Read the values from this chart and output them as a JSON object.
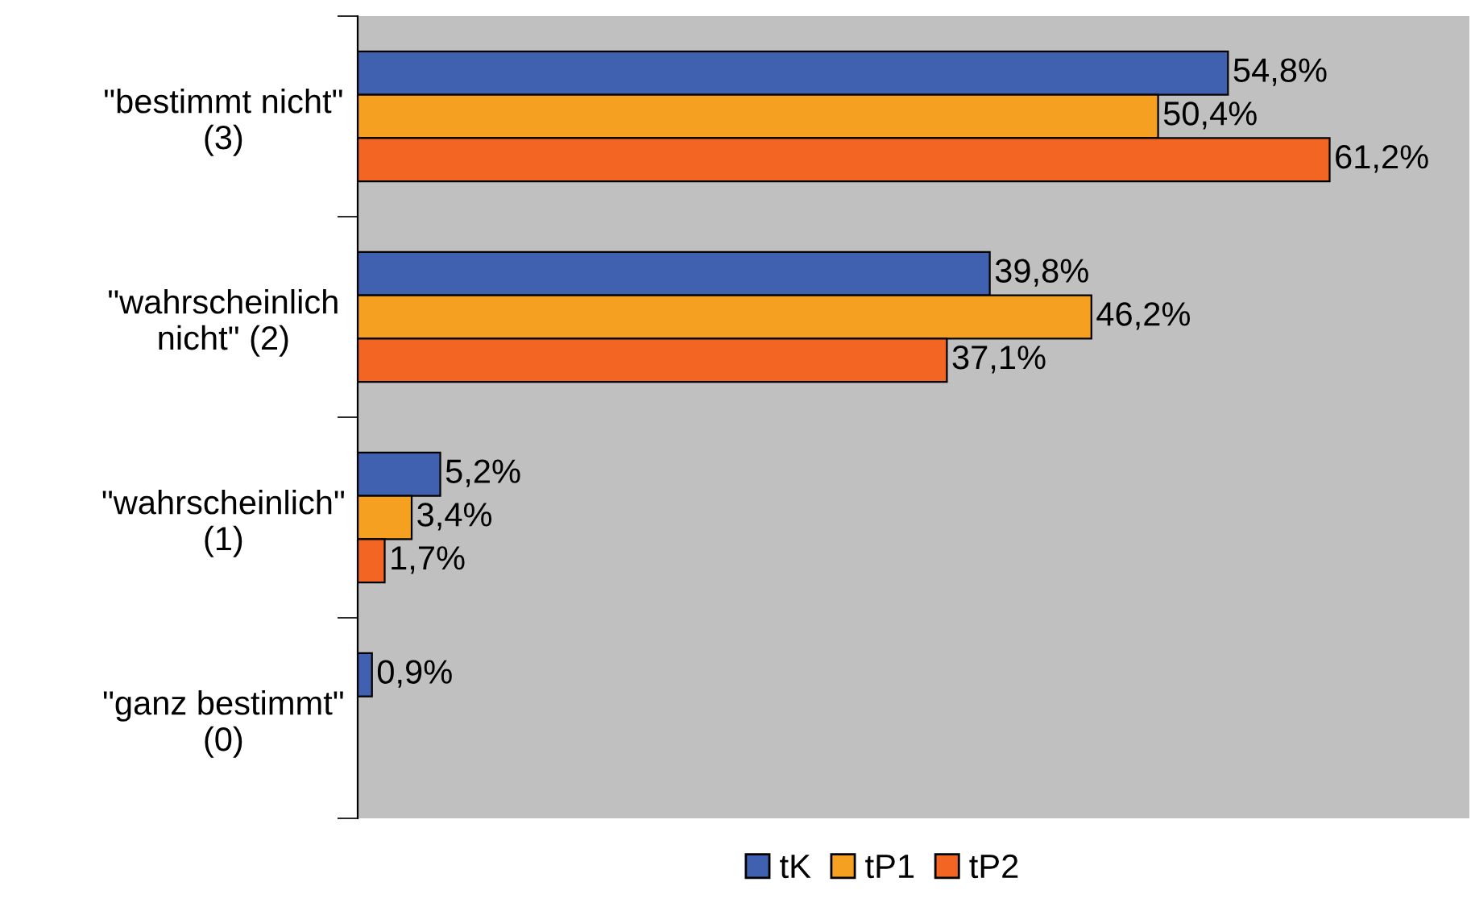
{
  "chart_data": {
    "type": "bar",
    "orientation": "horizontal",
    "categories": [
      "\"bestimmt nicht\"\n(3)",
      "\"wahrscheinlich\nnicht\" (2)",
      "\"wahrscheinlich\"\n(1)",
      "\"ganz bestimmt\"\n(0)"
    ],
    "xlim": [
      0,
      70
    ],
    "grid": false,
    "legend": "bottom",
    "series": [
      {
        "name": "tK",
        "color": "#4060b0",
        "values": [
          54.8,
          39.8,
          5.2,
          0.9
        ],
        "value_labels": [
          "54,8%",
          "39,8%",
          "5,2%",
          "0,9%"
        ]
      },
      {
        "name": "tP1",
        "color": "#f5a020",
        "values": [
          50.4,
          46.2,
          3.4,
          null
        ],
        "value_labels": [
          "50,4%",
          "46,2%",
          "3,4%",
          null
        ]
      },
      {
        "name": "tP2",
        "color": "#f26522",
        "values": [
          61.2,
          37.1,
          1.7,
          null
        ],
        "value_labels": [
          "61,2%",
          "37,1%",
          "1,7%",
          null
        ]
      }
    ]
  }
}
